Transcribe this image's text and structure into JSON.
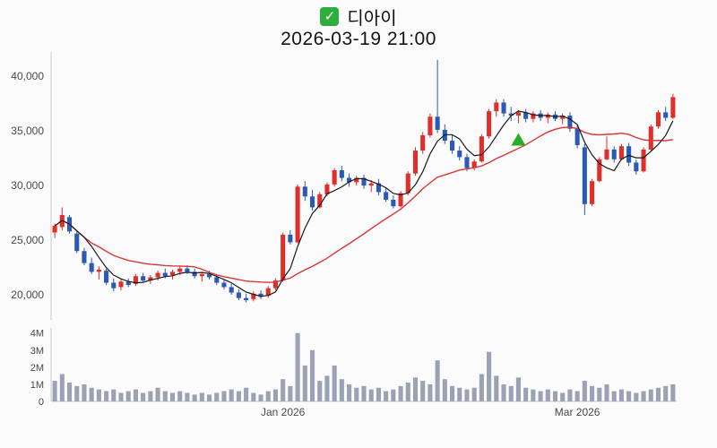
{
  "header": {
    "title": "디아이",
    "subtitle": "2026-03-19 21:00",
    "checkbox_glyph": "✓"
  },
  "colors": {
    "up": "#e02f2b",
    "down": "#2a5ab4",
    "ma_short": "#1a1a1a",
    "ma_long": "#d93636",
    "volume_bar": "#9aa2b4",
    "marker": "#27ae27",
    "axis_text": "#4a4a4a",
    "axis_line": "#c9c9c9",
    "background": "#fbfbfb"
  },
  "chart_data": [
    {
      "type": "candlestick",
      "title": "디아이",
      "subtitle": "2026-03-19 21:00",
      "ylim": [
        17700,
        41900
      ],
      "yticks": [
        "20,000",
        "25,000",
        "30,000",
        "35,000",
        "40,000"
      ],
      "ytick_values": [
        20000,
        25000,
        30000,
        35000,
        40000
      ],
      "xticks": [
        {
          "index": 31,
          "label": "Jan 2026"
        },
        {
          "index": 71,
          "label": "Mar 2026"
        }
      ],
      "ma": {
        "short_period": 5,
        "long_period": 20
      },
      "marker": {
        "shape": "triangle-up",
        "color": "#27ae27",
        "index": 63,
        "price": 34800
      },
      "candles_ohlc": [
        [
          25700,
          26500,
          25200,
          26300
        ],
        [
          26200,
          28000,
          25900,
          27300
        ],
        [
          27100,
          27300,
          25600,
          25800
        ],
        [
          25600,
          25800,
          23800,
          24000
        ],
        [
          24000,
          24300,
          22700,
          22900
        ],
        [
          22900,
          23400,
          21900,
          22100
        ],
        [
          22100,
          22600,
          21400,
          22300
        ],
        [
          22200,
          22400,
          20900,
          21100
        ],
        [
          21100,
          21500,
          20300,
          20600
        ],
        [
          20700,
          21400,
          20400,
          21200
        ],
        [
          21200,
          21500,
          20700,
          20900
        ],
        [
          21000,
          21900,
          20800,
          21700
        ],
        [
          21700,
          22000,
          21100,
          21300
        ],
        [
          21300,
          21800,
          21000,
          21600
        ],
        [
          21600,
          22200,
          21300,
          22000
        ],
        [
          22000,
          22400,
          21500,
          21700
        ],
        [
          21800,
          22300,
          21400,
          22100
        ],
        [
          22100,
          22600,
          21800,
          22400
        ],
        [
          22400,
          22700,
          21900,
          22100
        ],
        [
          22100,
          22400,
          21500,
          21700
        ],
        [
          21700,
          22100,
          21200,
          21900
        ],
        [
          21900,
          22200,
          21400,
          21600
        ],
        [
          21600,
          21800,
          20900,
          21100
        ],
        [
          21100,
          21400,
          20500,
          20700
        ],
        [
          20700,
          21000,
          20000,
          20200
        ],
        [
          20200,
          20500,
          19500,
          19700
        ],
        [
          19700,
          20100,
          19300,
          19500
        ],
        [
          19600,
          20300,
          19400,
          20100
        ],
        [
          20100,
          20400,
          19600,
          19800
        ],
        [
          19900,
          20800,
          19700,
          20600
        ],
        [
          20600,
          21500,
          20400,
          21300
        ],
        [
          21300,
          25700,
          21200,
          25500
        ],
        [
          25500,
          25900,
          24600,
          24800
        ],
        [
          24800,
          30100,
          24700,
          29900
        ],
        [
          29900,
          30400,
          28600,
          29000
        ],
        [
          29000,
          29600,
          27700,
          28000
        ],
        [
          28000,
          29400,
          27900,
          29200
        ],
        [
          29200,
          30300,
          29000,
          30100
        ],
        [
          30100,
          31600,
          29900,
          31400
        ],
        [
          31400,
          31800,
          30400,
          30700
        ],
        [
          30700,
          31100,
          29900,
          30300
        ],
        [
          30300,
          30900,
          30000,
          30700
        ],
        [
          30700,
          31000,
          29700,
          30000
        ],
        [
          30000,
          30500,
          29400,
          30200
        ],
        [
          30200,
          30600,
          29100,
          29400
        ],
        [
          29400,
          29800,
          28500,
          28700
        ],
        [
          28700,
          29100,
          27900,
          28100
        ],
        [
          28100,
          29500,
          28000,
          29300
        ],
        [
          29300,
          31300,
          29100,
          31100
        ],
        [
          31100,
          33500,
          30900,
          33200
        ],
        [
          33200,
          34900,
          32900,
          34600
        ],
        [
          34600,
          36600,
          34400,
          36300
        ],
        [
          36300,
          41500,
          34800,
          35100
        ],
        [
          35100,
          35600,
          33800,
          34100
        ],
        [
          34100,
          34600,
          32900,
          33200
        ],
        [
          33200,
          33600,
          32300,
          32600
        ],
        [
          32600,
          32900,
          31300,
          31600
        ],
        [
          31600,
          32400,
          31400,
          32200
        ],
        [
          32200,
          34700,
          32100,
          34500
        ],
        [
          34500,
          37000,
          34300,
          36800
        ],
        [
          36800,
          37900,
          36300,
          37600
        ],
        [
          37600,
          37900,
          36300,
          36600
        ],
        [
          36600,
          37200,
          35900,
          36400
        ],
        [
          36400,
          36900,
          35700,
          36700
        ],
        [
          36700,
          37000,
          35800,
          36100
        ],
        [
          36100,
          36800,
          35800,
          36600
        ],
        [
          36600,
          36900,
          35900,
          36200
        ],
        [
          36200,
          36700,
          35700,
          36500
        ],
        [
          36500,
          36800,
          35900,
          36100
        ],
        [
          36100,
          36600,
          35600,
          36400
        ],
        [
          36400,
          36700,
          34900,
          35200
        ],
        [
          35200,
          35500,
          33400,
          33700
        ],
        [
          33500,
          33800,
          27300,
          28300
        ],
        [
          28300,
          30600,
          28100,
          30400
        ],
        [
          30400,
          32600,
          30300,
          32400
        ],
        [
          32400,
          34500,
          32300,
          33300
        ],
        [
          33300,
          33600,
          32100,
          32400
        ],
        [
          32400,
          33800,
          32300,
          33600
        ],
        [
          33600,
          33900,
          31800,
          32100
        ],
        [
          32100,
          32400,
          31000,
          31300
        ],
        [
          31300,
          33500,
          31200,
          33300
        ],
        [
          33300,
          35600,
          33200,
          35400
        ],
        [
          35400,
          36900,
          35200,
          36700
        ],
        [
          36700,
          37200,
          35900,
          36200
        ],
        [
          36200,
          38400,
          36100,
          38100
        ]
      ]
    },
    {
      "type": "bar",
      "ylabel_ticks": [
        "0",
        "1M",
        "2M",
        "3M",
        "4M"
      ],
      "ytick_values": [
        0,
        1000000,
        2000000,
        3000000,
        4000000
      ],
      "ylim": [
        0,
        4300000
      ],
      "values_millions": [
        1.2,
        1.6,
        1.1,
        0.9,
        1.0,
        0.8,
        0.7,
        0.6,
        0.7,
        0.5,
        0.6,
        0.7,
        0.5,
        0.6,
        0.8,
        0.6,
        0.5,
        0.6,
        0.5,
        0.4,
        0.5,
        0.4,
        0.5,
        0.6,
        0.7,
        0.6,
        0.8,
        0.5,
        0.4,
        0.6,
        0.7,
        1.3,
        0.9,
        4.0,
        2.1,
        3.0,
        1.2,
        1.5,
        2.1,
        1.3,
        1.0,
        0.8,
        0.9,
        0.7,
        0.8,
        0.6,
        0.7,
        0.9,
        1.1,
        1.4,
        1.2,
        1.0,
        2.4,
        1.3,
        0.9,
        0.8,
        0.7,
        0.8,
        1.6,
        2.9,
        1.5,
        1.0,
        0.9,
        1.4,
        0.8,
        0.7,
        0.6,
        0.7,
        0.6,
        0.5,
        0.7,
        0.6,
        1.2,
        0.9,
        0.8,
        1.0,
        0.6,
        0.7,
        0.6,
        0.5,
        0.6,
        0.7,
        0.8,
        0.9,
        1.0
      ]
    }
  ]
}
